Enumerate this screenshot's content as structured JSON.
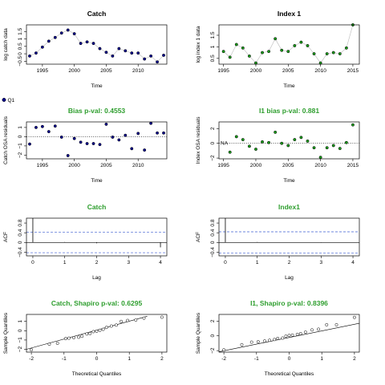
{
  "colors": {
    "title_plain": "#000000",
    "title_green": "#2e9e2e",
    "navy": "#00008b",
    "green": "#1a9a1a",
    "ref_line": "#3f5fd1"
  },
  "legend": {
    "label": "Q1"
  },
  "chart_data": [
    {
      "id": "catch",
      "type": "line",
      "title": "Catch",
      "title_color": "plain",
      "xlabel": "Time",
      "ylabel": "log catch data",
      "xlim": [
        1992.5,
        2014.5
      ],
      "ylim": [
        -0.7,
        1.95
      ],
      "xticks": [
        1995,
        2000,
        2005,
        2010
      ],
      "yticks": [
        -0.5,
        0,
        0.5,
        1,
        1.5
      ],
      "marker": "navy",
      "x": [
        1993,
        1994,
        1995,
        1996,
        1997,
        1998,
        1999,
        2000,
        2001,
        2002,
        2003,
        2004,
        2005,
        2006,
        2007,
        2008,
        2009,
        2010,
        2011,
        2012,
        2013,
        2014
      ],
      "values": [
        -0.15,
        0.05,
        0.45,
        0.85,
        1.1,
        1.4,
        1.6,
        1.35,
        0.7,
        0.8,
        0.7,
        0.35,
        0.1,
        -0.15,
        0.35,
        0.2,
        0.05,
        0.05,
        -0.35,
        -0.15,
        -0.55,
        -0.1
      ]
    },
    {
      "id": "index1",
      "type": "line",
      "title": "Index 1",
      "title_color": "plain",
      "xlabel": "Time",
      "ylabel": "log index 1 data",
      "xlim": [
        1994.3,
        2016.0
      ],
      "ylim": [
        0.25,
        1.95
      ],
      "xticks": [
        1995,
        2000,
        2005,
        2010,
        2015
      ],
      "yticks": [
        0.5,
        1,
        1.5
      ],
      "marker": "green",
      "x": [
        1995,
        1996,
        1997,
        1998,
        1999,
        2000,
        2001,
        2002,
        2003,
        2004,
        2005,
        2006,
        2007,
        2008,
        2009,
        2010,
        2011,
        2012,
        2013,
        2014,
        2015
      ],
      "values": [
        0.8,
        0.55,
        1.1,
        0.95,
        0.6,
        0.3,
        0.75,
        0.8,
        1.35,
        0.85,
        0.8,
        1.05,
        1.2,
        1.05,
        0.7,
        0.3,
        0.7,
        0.75,
        0.7,
        0.95,
        1.95
      ]
    },
    {
      "id": "catch-osa",
      "type": "scatter",
      "title": "Bias p-val: 0.4553",
      "title_color": "green",
      "xlabel": "Time",
      "ylabel": "Catch OSA residuals",
      "xlim": [
        1992.5,
        2014.5
      ],
      "ylim": [
        -2.4,
        1.6
      ],
      "xticks": [
        1995,
        2000,
        2005,
        2010
      ],
      "yticks": [
        -2,
        -1,
        0,
        1
      ],
      "marker": "navy",
      "zero_line": true,
      "x": [
        1993,
        1994,
        1995,
        1996,
        1997,
        1998,
        1999,
        2000,
        2001,
        2002,
        2003,
        2004,
        2005,
        2006,
        2007,
        2008,
        2009,
        2010,
        2011,
        2012,
        2013,
        2014
      ],
      "values": [
        -0.8,
        1.0,
        1.1,
        0.55,
        1.15,
        -0.05,
        -2.05,
        -0.2,
        -0.6,
        -0.75,
        -0.75,
        -0.85,
        1.35,
        -0.05,
        -0.35,
        0.15,
        -1.3,
        0.35,
        -1.45,
        1.45,
        0.4,
        0.4
      ]
    },
    {
      "id": "index1-osa",
      "type": "scatter",
      "title": "I1 bias p-val: 0.881",
      "title_color": "green",
      "xlabel": "Time",
      "ylabel": "Index OSA residuals",
      "xlim": [
        1994.3,
        2016.0
      ],
      "ylim": [
        -2.1,
        2.9
      ],
      "xticks": [
        1995,
        2000,
        2005,
        2010,
        2015
      ],
      "yticks": [
        -2,
        0,
        2
      ],
      "marker": "green",
      "zero_line": true,
      "na_label": "NA",
      "x": [
        1996,
        1997,
        1998,
        1999,
        2000,
        2001,
        2002,
        2003,
        2004,
        2005,
        2006,
        2007,
        2008,
        2009,
        2010,
        2011,
        2012,
        2013,
        2014,
        2015
      ],
      "values": [
        -1.2,
        0.9,
        0.5,
        -0.4,
        -0.8,
        0.2,
        0.1,
        1.5,
        0.0,
        -0.3,
        0.5,
        0.8,
        0.3,
        -0.6,
        -1.9,
        -0.6,
        -0.3,
        -0.7,
        0.1,
        2.5
      ]
    },
    {
      "id": "catch-acf",
      "type": "bar",
      "title": "Catch",
      "title_color": "green",
      "xlabel": "Lag",
      "ylabel": "ACF",
      "xlim": [
        -0.2,
        4.2
      ],
      "ylim": [
        -0.55,
        1.0
      ],
      "xticks": [
        0,
        1,
        2,
        3,
        4
      ],
      "yticks": [
        -0.4,
        0,
        0.4,
        0.8
      ],
      "lags": [
        0,
        1,
        2,
        3,
        4
      ],
      "values": [
        1.0,
        0.02,
        -0.03,
        0.01,
        -0.2
      ],
      "conf": [
        0.42,
        -0.42
      ]
    },
    {
      "id": "index1-acf",
      "type": "bar",
      "title": "Index1",
      "title_color": "green",
      "xlabel": "Lag",
      "ylabel": "ACF",
      "xlim": [
        -0.2,
        4.2
      ],
      "ylim": [
        -0.55,
        1.0
      ],
      "xticks": [
        0,
        1,
        2,
        3,
        4
      ],
      "yticks": [
        -0.4,
        0,
        0.4,
        0.8
      ],
      "lags": [
        0,
        1,
        2,
        3,
        4
      ],
      "values": [
        1.0,
        0.02,
        0.0,
        -0.01,
        0.01
      ],
      "conf": [
        0.44,
        -0.44
      ]
    },
    {
      "id": "catch-qq",
      "type": "scatter",
      "title": "Catch, Shapiro p-val: 0.6295",
      "title_color": "green",
      "xlabel": "Theoretical Quantiles",
      "ylabel": "Sample Quantiles",
      "xlim": [
        -2.15,
        2.15
      ],
      "ylim": [
        -2.3,
        1.75
      ],
      "xticks": [
        -2,
        -1,
        0,
        1,
        2
      ],
      "yticks": [
        -2,
        -1,
        0,
        1
      ],
      "marker": "white",
      "ref_line": [
        -2.15,
        -2.0,
        1.55,
        1.55
      ],
      "x": [
        -2.0,
        -1.45,
        -1.2,
        -0.95,
        -0.85,
        -0.7,
        -0.55,
        -0.45,
        -0.3,
        -0.2,
        -0.1,
        0.0,
        0.1,
        0.2,
        0.3,
        0.45,
        0.6,
        0.75,
        0.95,
        1.2,
        1.45,
        2.0
      ],
      "values": [
        -2.05,
        -1.45,
        -1.35,
        -0.85,
        -0.8,
        -0.75,
        -0.7,
        -0.6,
        -0.35,
        -0.3,
        -0.1,
        -0.05,
        0.05,
        0.15,
        0.35,
        0.5,
        0.6,
        1.0,
        1.1,
        1.15,
        1.35,
        1.45
      ]
    },
    {
      "id": "index1-qq",
      "type": "scatter",
      "title": "I1, Shapiro p-val: 0.8396",
      "title_color": "green",
      "xlabel": "Theoretical Quantiles",
      "ylabel": "Sample Quantiles",
      "xlim": [
        -2.15,
        2.15
      ],
      "ylim": [
        -2.2,
        2.9
      ],
      "xticks": [
        -2,
        -1,
        0,
        1,
        2
      ],
      "yticks": [
        -2,
        0,
        2
      ],
      "marker": "white",
      "ref_line": [
        -2.15,
        -2.15,
        2.15,
        1.7
      ],
      "x": [
        -2.0,
        -1.45,
        -1.15,
        -0.95,
        -0.75,
        -0.6,
        -0.45,
        -0.35,
        -0.2,
        -0.1,
        0.0,
        0.1,
        0.25,
        0.35,
        0.5,
        0.7,
        0.9,
        1.15,
        1.45,
        2.0
      ],
      "values": [
        -1.9,
        -1.2,
        -0.85,
        -0.8,
        -0.7,
        -0.6,
        -0.5,
        -0.35,
        -0.3,
        -0.05,
        0.05,
        0.1,
        0.2,
        0.3,
        0.5,
        0.8,
        0.9,
        1.5,
        1.5,
        2.5
      ]
    }
  ]
}
